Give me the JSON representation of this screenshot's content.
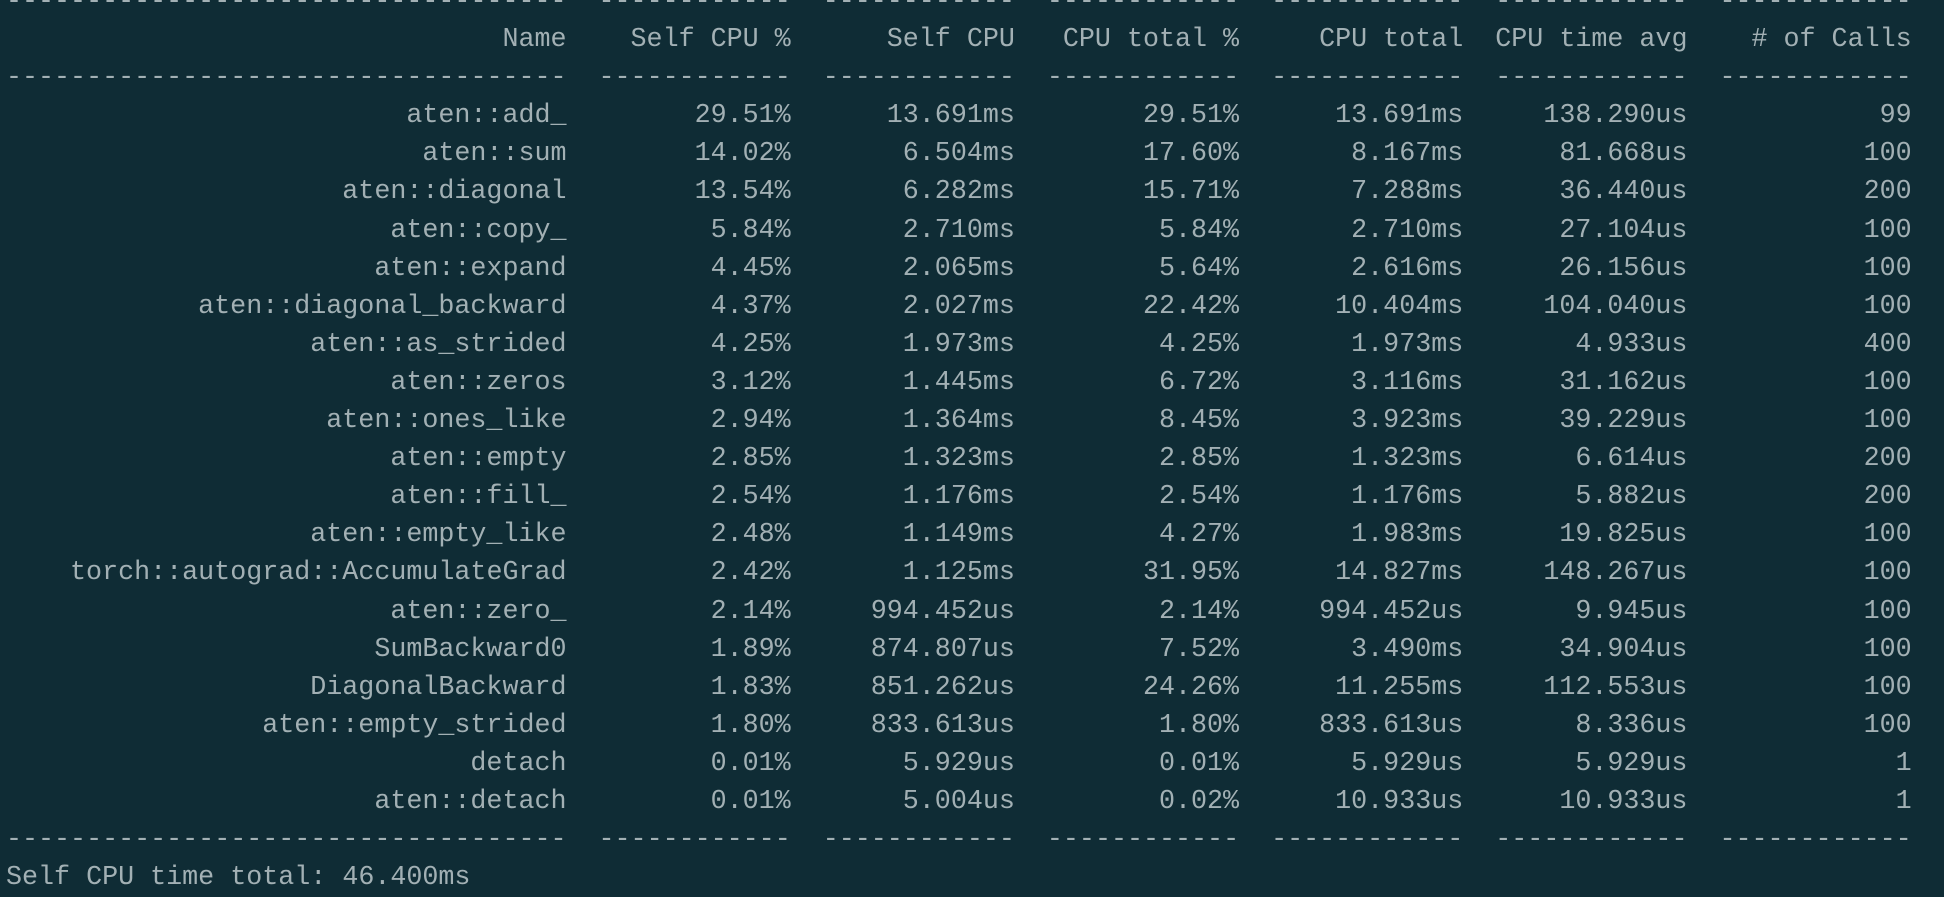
{
  "table": {
    "separators": [
      "-----------------------------------",
      "------------",
      "------------",
      "------------",
      "------------",
      "------------",
      "------------"
    ],
    "header": [
      "Name",
      "Self CPU %",
      "Self CPU",
      "CPU total %",
      "CPU total",
      "CPU time avg",
      "# of Calls"
    ],
    "rows": [
      [
        "aten::add_",
        "29.51%",
        "13.691ms",
        "29.51%",
        "13.691ms",
        "138.290us",
        "99"
      ],
      [
        "aten::sum",
        "14.02%",
        "6.504ms",
        "17.60%",
        "8.167ms",
        "81.668us",
        "100"
      ],
      [
        "aten::diagonal",
        "13.54%",
        "6.282ms",
        "15.71%",
        "7.288ms",
        "36.440us",
        "200"
      ],
      [
        "aten::copy_",
        "5.84%",
        "2.710ms",
        "5.84%",
        "2.710ms",
        "27.104us",
        "100"
      ],
      [
        "aten::expand",
        "4.45%",
        "2.065ms",
        "5.64%",
        "2.616ms",
        "26.156us",
        "100"
      ],
      [
        "aten::diagonal_backward",
        "4.37%",
        "2.027ms",
        "22.42%",
        "10.404ms",
        "104.040us",
        "100"
      ],
      [
        "aten::as_strided",
        "4.25%",
        "1.973ms",
        "4.25%",
        "1.973ms",
        "4.933us",
        "400"
      ],
      [
        "aten::zeros",
        "3.12%",
        "1.445ms",
        "6.72%",
        "3.116ms",
        "31.162us",
        "100"
      ],
      [
        "aten::ones_like",
        "2.94%",
        "1.364ms",
        "8.45%",
        "3.923ms",
        "39.229us",
        "100"
      ],
      [
        "aten::empty",
        "2.85%",
        "1.323ms",
        "2.85%",
        "1.323ms",
        "6.614us",
        "200"
      ],
      [
        "aten::fill_",
        "2.54%",
        "1.176ms",
        "2.54%",
        "1.176ms",
        "5.882us",
        "200"
      ],
      [
        "aten::empty_like",
        "2.48%",
        "1.149ms",
        "4.27%",
        "1.983ms",
        "19.825us",
        "100"
      ],
      [
        "torch::autograd::AccumulateGrad",
        "2.42%",
        "1.125ms",
        "31.95%",
        "14.827ms",
        "148.267us",
        "100"
      ],
      [
        "aten::zero_",
        "2.14%",
        "994.452us",
        "2.14%",
        "994.452us",
        "9.945us",
        "100"
      ],
      [
        "SumBackward0",
        "1.89%",
        "874.807us",
        "7.52%",
        "3.490ms",
        "34.904us",
        "100"
      ],
      [
        "DiagonalBackward",
        "1.83%",
        "851.262us",
        "24.26%",
        "11.255ms",
        "112.553us",
        "100"
      ],
      [
        "aten::empty_strided",
        "1.80%",
        "833.613us",
        "1.80%",
        "833.613us",
        "8.336us",
        "100"
      ],
      [
        "detach",
        "0.01%",
        "5.929us",
        "0.01%",
        "5.929us",
        "5.929us",
        "1"
      ],
      [
        "aten::detach",
        "0.01%",
        "5.004us",
        "0.02%",
        "10.933us",
        "10.933us",
        "1"
      ]
    ],
    "footer": "Self CPU time total: 46.400ms"
  }
}
